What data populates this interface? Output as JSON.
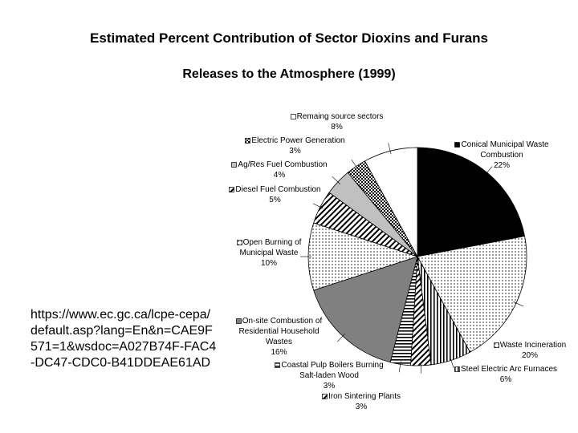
{
  "chart_data": {
    "type": "pie",
    "title": "Estimated Percent Contribution of Sector Dioxins and Furans",
    "subtitle": "Releases to the Atmosphere (1999)",
    "source": "https://www.ec.gc.ca/lcpe-cepa/default.asp?lang=En&n=CAE9F571=1&wsdoc=A027B74F-FAC4-DC47-CDC0-B41DDEAE61AD",
    "categories": [
      "Conical Municipal Waste Combustion",
      "Waste Incineration",
      "Steel Electric Arc Furnaces",
      "Iron Sintering Plants",
      "Coastal Pulp Boilers Burning Salt-laden Wood",
      "On-site Combustion of Residential Household Wastes",
      "Open Burning of Municipal Waste",
      "Diesel Fuel Combustion",
      "Ag/Res Fuel Combustion",
      "Electric Power Generation",
      "Remaing source sectors"
    ],
    "values": [
      22,
      20,
      6,
      3,
      3,
      16,
      10,
      5,
      4,
      3,
      8
    ],
    "value_labels": [
      "22%",
      "20%",
      "6%",
      "3%",
      "3%",
      "16%",
      "10%",
      "5%",
      "4%",
      "3%",
      "8%"
    ],
    "fills": [
      {
        "color": "#000000",
        "pattern": "solid"
      },
      {
        "color": "#000000",
        "pattern": "dots"
      },
      {
        "color": "#000000",
        "pattern": "vstripes"
      },
      {
        "color": "#000000",
        "pattern": "diagonal"
      },
      {
        "color": "#000000",
        "pattern": "hstripes"
      },
      {
        "color": "#808080",
        "pattern": "solid"
      },
      {
        "color": "#000000",
        "pattern": "dots"
      },
      {
        "color": "#000000",
        "pattern": "diagonal"
      },
      {
        "color": "#c0c0c0",
        "pattern": "solid"
      },
      {
        "color": "#000000",
        "pattern": "check"
      },
      {
        "color": "#ffffff",
        "pattern": "solid"
      }
    ]
  }
}
